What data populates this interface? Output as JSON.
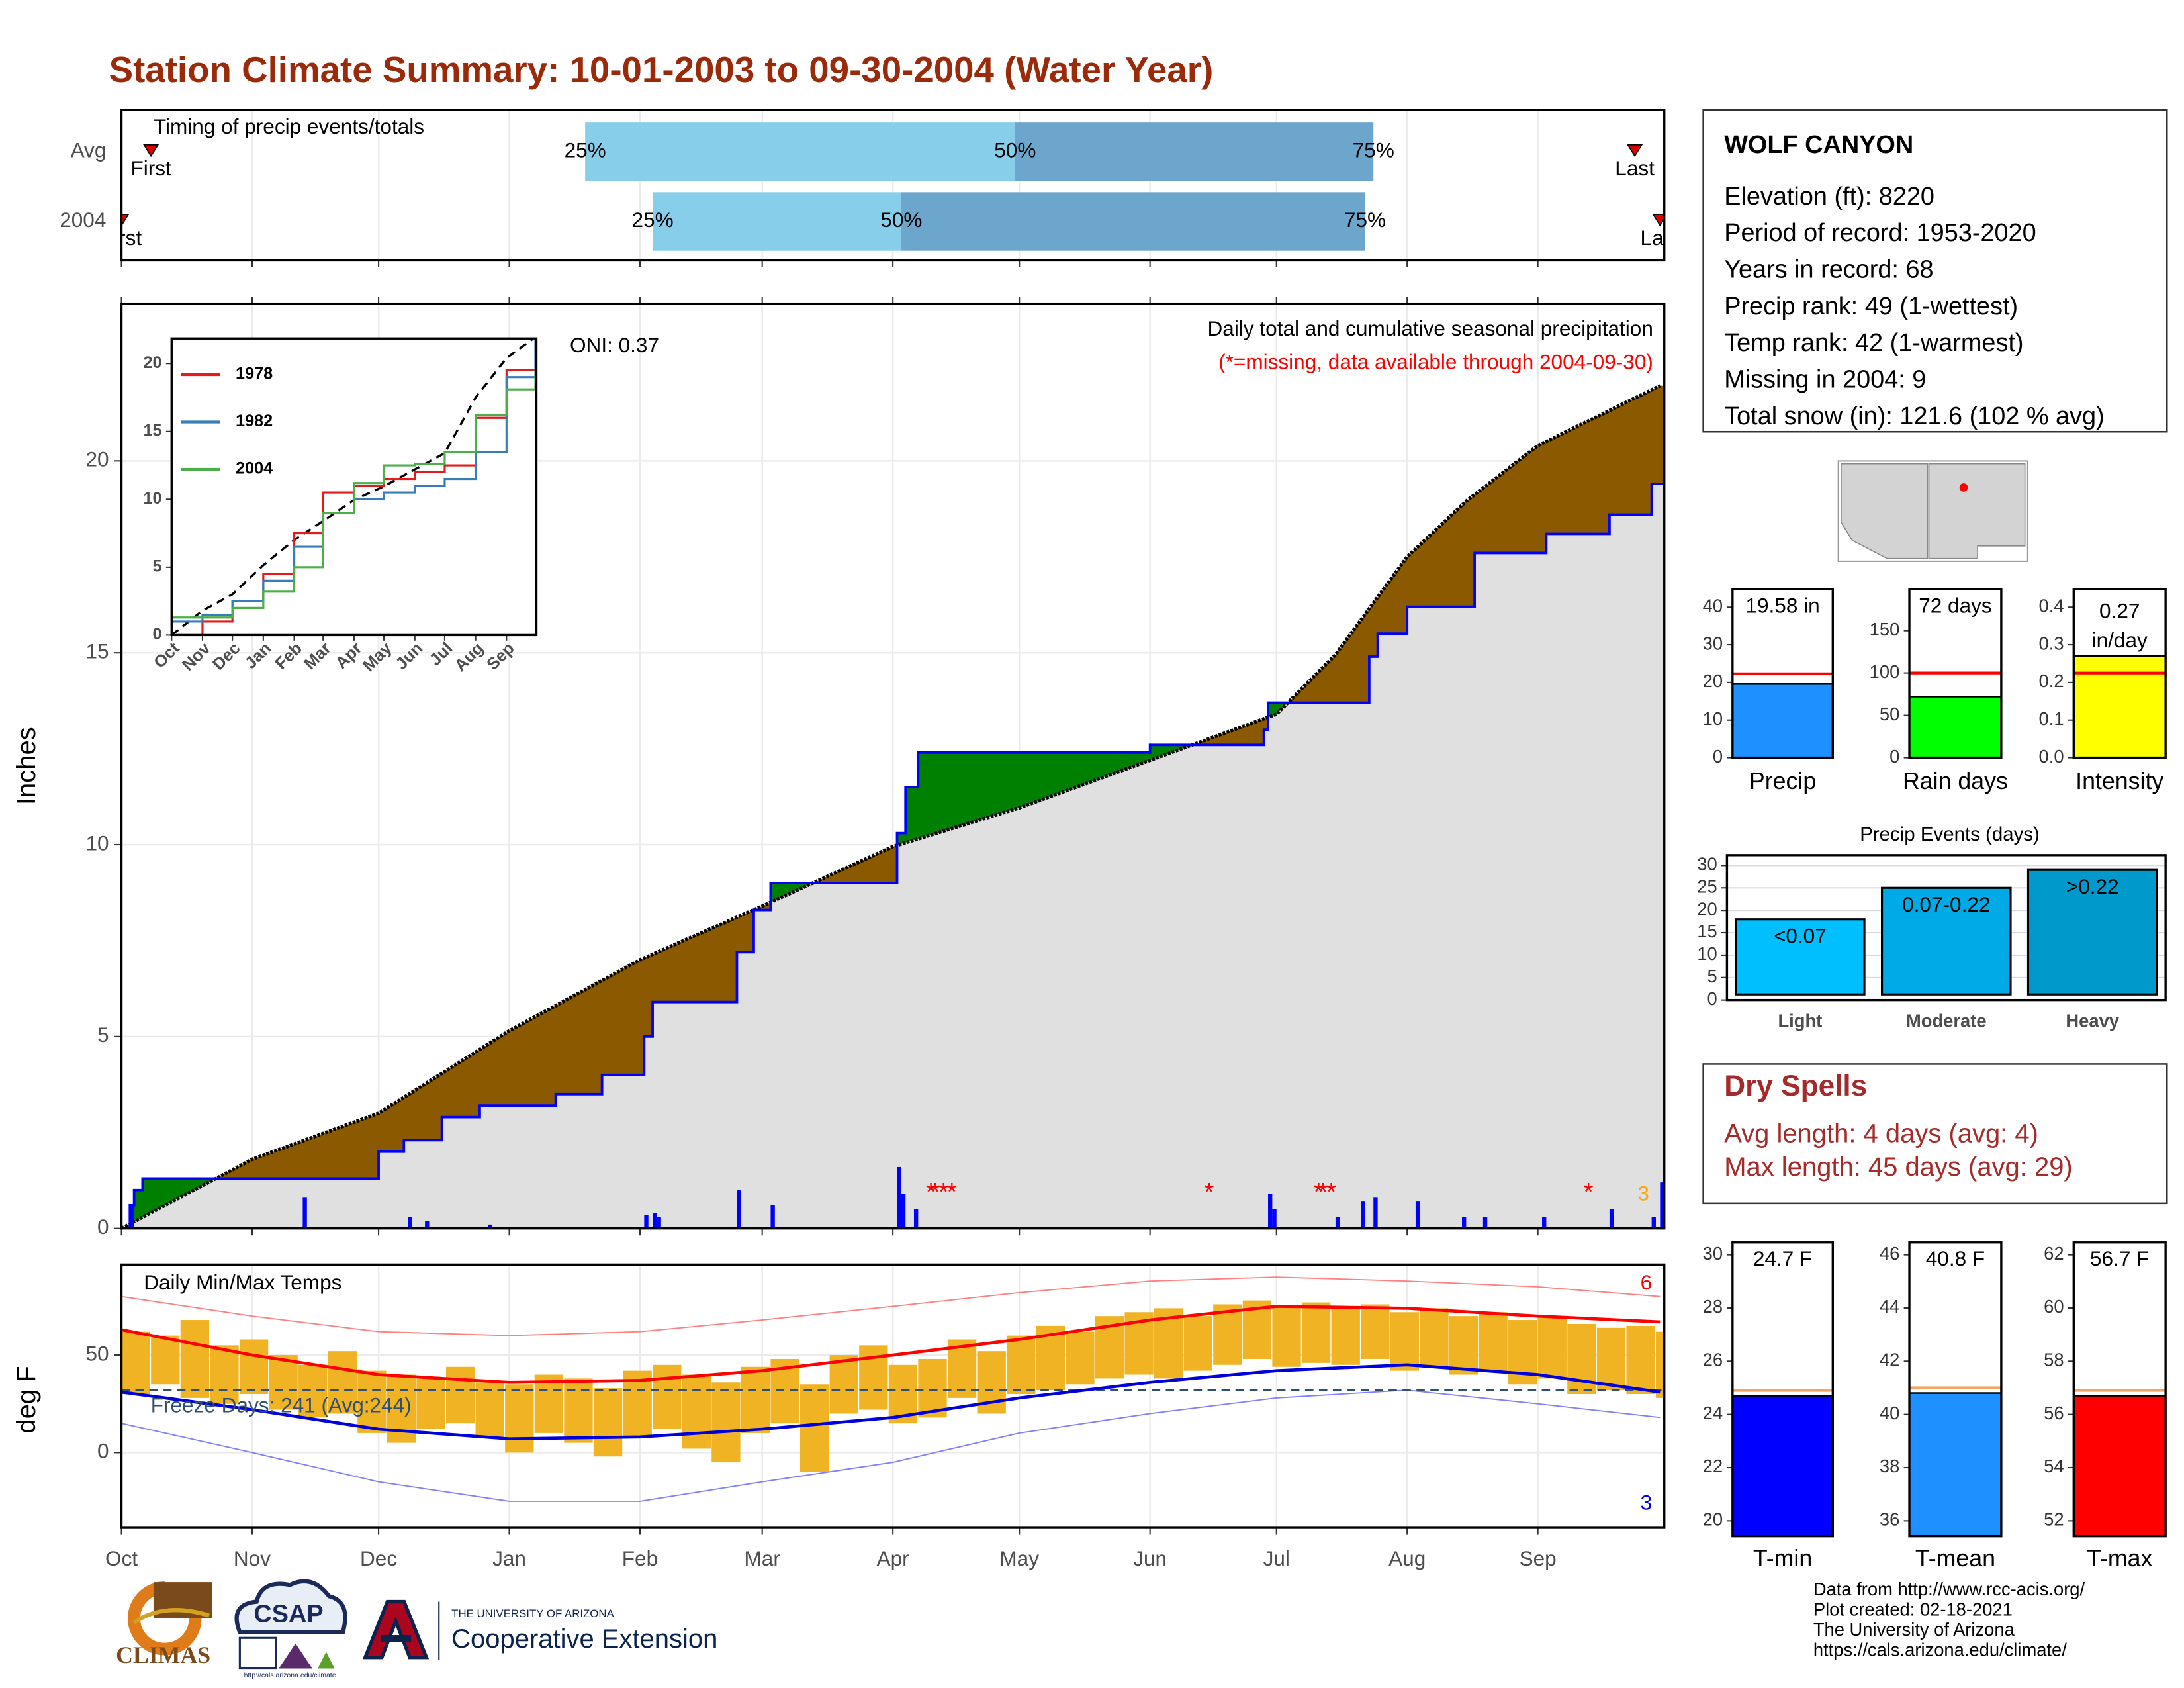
{
  "title": "Station Climate Summary: 10-01-2003 to 09-30-2004 (Water Year)",
  "chart_data": [
    {
      "type": "timing",
      "title": "Timing of precip events/totals",
      "categories": [
        "Avg",
        "2004"
      ],
      "event_labels": [
        "First",
        "Last"
      ],
      "percentile_labels": [
        "25%",
        "50%",
        "75%"
      ],
      "first": [
        7,
        0
      ],
      "p25": [
        110,
        126
      ],
      "p50": [
        212,
        185
      ],
      "p75": [
        297,
        295
      ],
      "last": [
        359,
        365
      ],
      "xlim": [
        0,
        366
      ],
      "colors": [
        "#87ceeb",
        "#6ca6cd"
      ],
      "marker_color": "#e00000"
    },
    {
      "type": "cumulative",
      "title": "Daily total and cumulative seasonal precipitation",
      "subtitle": "(*=missing, data available through 2004-09-30)",
      "annotation": "ONI: 0.37",
      "count_note": "3",
      "y_label": "Inches",
      "xlim": [
        0,
        366
      ],
      "ylim": [
        0,
        24.1
      ],
      "yticks": [
        0,
        5,
        10,
        15,
        20
      ],
      "average": {
        "color": "#000000",
        "x": [
          0,
          31,
          61,
          92,
          123,
          152,
          183,
          213,
          244,
          274,
          288,
          305,
          319,
          336,
          365
        ],
        "values": [
          0,
          1.8,
          3.0,
          5.15,
          7.0,
          8.4,
          9.95,
          10.96,
          12.2,
          13.4,
          14.95,
          17.5,
          18.95,
          20.4,
          21.96
        ]
      },
      "year": {
        "color": "#0000ff",
        "x": [
          0,
          2,
          3,
          5,
          61,
          67,
          76,
          85,
          103,
          114,
          124,
          126,
          146,
          150,
          154,
          184,
          186,
          189,
          244,
          271,
          272,
          296,
          298,
          305,
          321,
          338,
          353,
          363
        ],
        "values": [
          0,
          0.6,
          1.0,
          1.3,
          2.0,
          2.3,
          2.9,
          3.2,
          3.5,
          4.0,
          5.0,
          5.9,
          7.2,
          8.3,
          9.0,
          10.3,
          11.5,
          12.4,
          12.6,
          13.0,
          13.7,
          14.9,
          15.5,
          16.2,
          17.6,
          18.1,
          18.6,
          19.4
        ]
      },
      "daily": {
        "color": "#0000ff",
        "x": [
          2,
          43,
          68,
          72,
          87,
          124,
          126,
          127,
          146,
          154,
          184,
          185,
          188,
          272,
          273,
          288,
          294,
          297,
          307,
          318,
          323,
          337,
          353,
          363,
          365
        ],
        "values": [
          0.6,
          0.8,
          0.3,
          0.2,
          0.1,
          0.35,
          0.4,
          0.3,
          1.0,
          0.6,
          1.6,
          0.9,
          0.5,
          0.9,
          0.5,
          0.3,
          0.7,
          0.8,
          0.7,
          0.3,
          0.3,
          0.3,
          0.5,
          0.3,
          1.2
        ]
      },
      "missing": {
        "symbol": "*",
        "color": "#ff0000",
        "x": [
          192,
          193,
          195,
          197,
          258,
          284,
          285,
          287,
          348
        ]
      },
      "fill_colors": {
        "below": "#8b5a00",
        "above": "#008000",
        "base": "#e0e0e0"
      }
    },
    {
      "type": "inset",
      "xlim": [
        0,
        366
      ],
      "ylim": [
        0,
        21.85
      ],
      "yticks": [
        0,
        5,
        10,
        15,
        20
      ],
      "xticks": [
        {
          "value": 0,
          "label": "Oct"
        },
        {
          "value": 31,
          "label": "Nov"
        },
        {
          "value": 61,
          "label": "Dec"
        },
        {
          "value": 92,
          "label": "Jan"
        },
        {
          "value": 123,
          "label": "Feb"
        },
        {
          "value": 152,
          "label": "Mar"
        },
        {
          "value": 183,
          "label": "Apr"
        },
        {
          "value": 213,
          "label": "May"
        },
        {
          "value": 244,
          "label": "Jun"
        },
        {
          "value": 274,
          "label": "Jul"
        },
        {
          "value": 305,
          "label": "Aug"
        },
        {
          "value": 336,
          "label": "Sep"
        }
      ],
      "x": [
        0,
        31,
        61,
        92,
        123,
        152,
        183,
        213,
        244,
        274,
        305,
        336,
        365
      ],
      "series": [
        {
          "name": "1978",
          "color": "#e41a1c",
          "values": [
            0,
            1,
            2.5,
            4.5,
            7.5,
            10.5,
            11,
            11.5,
            12,
            12.5,
            16,
            19.5,
            21.5
          ]
        },
        {
          "name": "1982",
          "color": "#377eb8",
          "values": [
            1,
            1.5,
            2.5,
            4,
            6.5,
            9,
            10,
            10.5,
            11,
            11.5,
            13.5,
            19,
            22
          ]
        },
        {
          "name": "2004",
          "color": "#4daf4a",
          "values": [
            1.3,
            1.3,
            2.0,
            3.2,
            5.0,
            9.0,
            11.2,
            12.5,
            12.6,
            13.5,
            16.2,
            18.1,
            19.4
          ]
        }
      ],
      "average": {
        "color": "#000000",
        "values": [
          0,
          1.8,
          3.0,
          5.15,
          7.0,
          8.4,
          9.95,
          10.96,
          12.2,
          13.4,
          17.5,
          20.4,
          21.96
        ]
      }
    },
    {
      "type": "temperature",
      "title": "Daily Min/Max Temps",
      "annotation": "Freeze Days: 241 (Avg:244)",
      "y_label": "deg F",
      "high_note": "6",
      "low_note": "3",
      "xlim": [
        0,
        366
      ],
      "ylim": [
        -38.6,
        96.4
      ],
      "yticks": [
        0,
        50
      ],
      "xticks": [
        {
          "value": 0,
          "label": "Oct"
        },
        {
          "value": 31,
          "label": "Nov"
        },
        {
          "value": 61,
          "label": "Dec"
        },
        {
          "value": 92,
          "label": "Jan"
        },
        {
          "value": 123,
          "label": "Feb"
        },
        {
          "value": 152,
          "label": "Mar"
        },
        {
          "value": 183,
          "label": "Apr"
        },
        {
          "value": 213,
          "label": "May"
        },
        {
          "value": 244,
          "label": "Jun"
        },
        {
          "value": 274,
          "label": "Jul"
        },
        {
          "value": 305,
          "label": "Aug"
        },
        {
          "value": 336,
          "label": "Sep"
        }
      ],
      "bar_color": "#f0b323",
      "bar_x": [
        0,
        7,
        14,
        21,
        28,
        35,
        42,
        49,
        56,
        63,
        70,
        77,
        84,
        91,
        98,
        105,
        112,
        119,
        126,
        133,
        140,
        147,
        154,
        161,
        168,
        175,
        182,
        189,
        196,
        203,
        210,
        217,
        224,
        231,
        238,
        245,
        252,
        259,
        266,
        273,
        280,
        287,
        294,
        301,
        308,
        315,
        322,
        329,
        336,
        343,
        350,
        357,
        364
      ],
      "max": [
        62,
        60,
        68,
        55,
        58,
        50,
        45,
        52,
        42,
        40,
        38,
        44,
        36,
        35,
        40,
        38,
        33,
        42,
        45,
        40,
        36,
        44,
        48,
        35,
        50,
        55,
        45,
        48,
        58,
        52,
        60,
        65,
        62,
        70,
        72,
        74,
        70,
        76,
        78,
        75,
        77,
        74,
        76,
        72,
        74,
        70,
        72,
        68,
        70,
        66,
        64,
        65,
        62
      ],
      "min": [
        30,
        35,
        28,
        25,
        30,
        22,
        18,
        20,
        10,
        5,
        12,
        15,
        8,
        0,
        10,
        5,
        -2,
        8,
        12,
        2,
        -5,
        10,
        15,
        -10,
        20,
        22,
        15,
        18,
        28,
        20,
        30,
        32,
        35,
        38,
        40,
        38,
        42,
        45,
        48,
        44,
        46,
        45,
        48,
        42,
        44,
        40,
        42,
        35,
        38,
        30,
        32,
        30,
        28
      ],
      "lines_x": [
        0,
        31,
        61,
        92,
        123,
        152,
        183,
        213,
        244,
        274,
        305,
        336,
        365
      ],
      "avg_max": [
        63,
        50,
        40,
        36,
        37,
        42,
        50,
        58,
        68,
        75,
        74,
        70,
        67
      ],
      "avg_min": [
        31,
        22,
        12,
        7,
        8,
        12,
        18,
        28,
        36,
        42,
        45,
        40,
        31
      ],
      "record_max": [
        80,
        70,
        62,
        60,
        62,
        68,
        75,
        82,
        88,
        90,
        88,
        85,
        80
      ],
      "record_min": [
        15,
        0,
        -15,
        -25,
        -25,
        -15,
        -5,
        10,
        20,
        28,
        32,
        25,
        18
      ],
      "freeze": 32,
      "colors": {
        "avg_max": "#ff0000",
        "avg_min": "#0000dd",
        "record_max": "#ff8080",
        "record_min": "#8080ff",
        "freeze": "#2f4f6f"
      }
    },
    {
      "type": "summary-bar",
      "categories": [
        "Precip"
      ],
      "values": [
        19.58
      ],
      "value_labels": [
        "19.58 in"
      ],
      "average": 22.3,
      "ylim": [
        0,
        44.8
      ],
      "yticks": [
        0,
        10,
        20,
        30,
        40
      ],
      "color": "#1e90ff",
      "average_color": "#ff0000"
    },
    {
      "type": "summary-bar",
      "categories": [
        "Rain days"
      ],
      "values": [
        72
      ],
      "value_labels": [
        "72 days"
      ],
      "average": 100,
      "ylim": [
        0,
        199
      ],
      "yticks": [
        0,
        50,
        100,
        150
      ],
      "color": "#00ff00",
      "average_color": "#ff0000"
    },
    {
      "type": "summary-bar",
      "categories": [
        "Intensity"
      ],
      "values": [
        0.27
      ],
      "value_labels": [
        "0.27 in/day"
      ],
      "average": 0.225,
      "ylim": [
        0,
        0.448
      ],
      "yticks": [
        {
          "value": 0,
          "label": "0.0"
        },
        0.1,
        0.2,
        0.3,
        0.4
      ],
      "color": "#ffff00",
      "average_color": "#ff0000"
    },
    {
      "type": "bar",
      "title": "Precip Events (days)",
      "categories": [
        "Light",
        "Moderate",
        "Heavy"
      ],
      "values": [
        18,
        25,
        29
      ],
      "bar_labels": [
        "<0.07",
        "0.07-0.22",
        ">0.22"
      ],
      "colors": [
        "#00bfff",
        "#00aae6",
        "#0099cc"
      ],
      "ylim": [
        0,
        32.3
      ],
      "yticks": [
        0,
        5,
        10,
        15,
        20,
        25,
        30
      ],
      "grid": true
    },
    {
      "type": "summary-bar",
      "categories": [
        "T-min"
      ],
      "values": [
        24.7
      ],
      "value_labels": [
        "24.7 F"
      ],
      "average": 24.9,
      "ylim": [
        19.42,
        30.47
      ],
      "yticks": [
        20,
        22,
        24,
        26,
        28,
        30
      ],
      "color": "#0000ff",
      "average_color": "#f4a460"
    },
    {
      "type": "summary-bar",
      "categories": [
        "T-mean"
      ],
      "values": [
        40.8
      ],
      "value_labels": [
        "40.8 F"
      ],
      "average": 41.0,
      "ylim": [
        35.42,
        46.47
      ],
      "yticks": [
        36,
        38,
        40,
        42,
        44,
        46
      ],
      "color": "#1e90ff",
      "average_color": "#f4a460"
    },
    {
      "type": "summary-bar",
      "categories": [
        "T-max"
      ],
      "values": [
        56.7
      ],
      "value_labels": [
        "56.7 F"
      ],
      "average": 56.9,
      "ylim": [
        51.42,
        62.47
      ],
      "yticks": [
        52,
        54,
        56,
        58,
        60,
        62
      ],
      "color": "#ff0000",
      "average_color": "#f4a460"
    }
  ],
  "station": {
    "name": "WOLF CANYON",
    "lines": [
      "Elevation (ft): 8220",
      "Period of record: 1953-2020",
      "Years in record: 68",
      "Precip rank: 49 (1-wettest)",
      "Temp rank: 42 (1-warmest)",
      "Missing in 2004: 9",
      "Total snow (in): 121.6 (102 % avg)"
    ]
  },
  "dry_spells": {
    "title": "Dry Spells",
    "lines": [
      "Avg length: 4 days (avg: 4)",
      "Max length: 45 days (avg: 29)"
    ]
  },
  "credits": [
    "Data from http://www.rcc-acis.org/",
    "Plot created: 02-18-2021",
    "The University of Arizona",
    "https://cals.arizona.edu/climate/"
  ],
  "logos": {
    "climas": "CLIMAS",
    "csap": "CSAP",
    "csap_url": "http://cals.arizona.edu/climate",
    "ua": "THE UNIVERSITY OF ARIZONA",
    "extension": "Cooperative Extension"
  }
}
